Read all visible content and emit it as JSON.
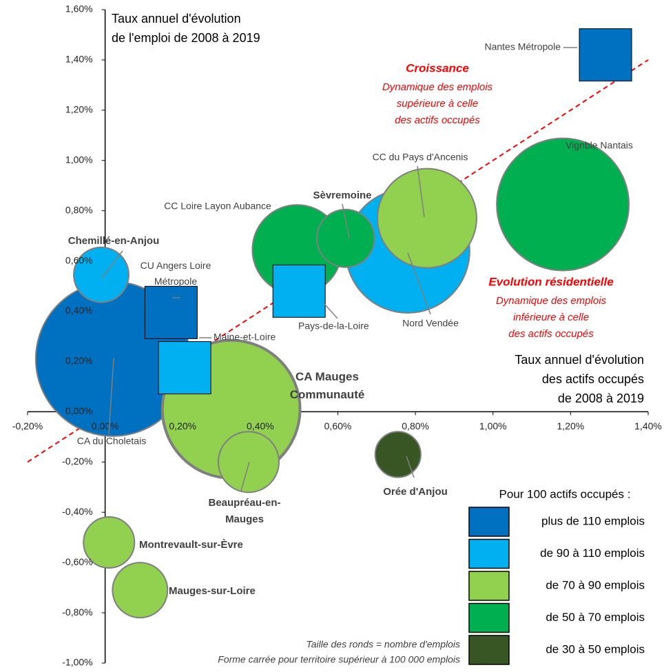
{
  "chart_data": {
    "type": "bubble",
    "title": "Taux annuel d'évolution\nde l'emploi de 2008 à 2019",
    "x_label": "Taux annuel d'évolution\ndes actifs occupés\nde 2008 à 2019",
    "legend_title": "Pour 100 actifs occupés :",
    "xlim": [
      -0.2,
      1.4
    ],
    "ylim": [
      -1.0,
      1.6
    ],
    "xticks": [
      {
        "value": -0.2,
        "label": "-0,20%"
      },
      {
        "value": 0,
        "label": "0,00%"
      },
      {
        "value": 0.2,
        "label": "0,20%"
      },
      {
        "value": 0.4,
        "label": "0,40%"
      },
      {
        "value": 0.6,
        "label": "0,60%"
      },
      {
        "value": 0.8,
        "label": "0,80%"
      },
      {
        "value": 1.0,
        "label": "1,00%"
      },
      {
        "value": 1.2,
        "label": "1,20%"
      },
      {
        "value": 1.4,
        "label": "1,40%"
      }
    ],
    "yticks": [
      {
        "value": -1.0,
        "label": "-1,00%"
      },
      {
        "value": -0.8,
        "label": "-0,80%"
      },
      {
        "value": -0.6,
        "label": "-0,60%"
      },
      {
        "value": -0.4,
        "label": "-0,40%"
      },
      {
        "value": -0.2,
        "label": "-0,20%"
      },
      {
        "value": 0,
        "label": "0,00%"
      },
      {
        "value": 0.2,
        "label": "0,20%"
      },
      {
        "value": 0.4,
        "label": "0,40%"
      },
      {
        "value": 0.6,
        "label": "0,60%"
      },
      {
        "value": 0.8,
        "label": "0,80%"
      },
      {
        "value": 1.0,
        "label": "1,00%"
      },
      {
        "value": 1.2,
        "label": "1,20%"
      },
      {
        "value": 1.4,
        "label": "1,40%"
      },
      {
        "value": 1.6,
        "label": "1,60%"
      }
    ],
    "reference_line": {
      "x": [
        -0.2,
        1.4
      ],
      "y": [
        -0.2,
        1.4
      ],
      "color": "#ff0000"
    },
    "annotations": [
      {
        "title": "Croissance",
        "text": "Dynamique des emplois\nsupérieure à celle\ndes actifs occupés",
        "color": "#ff0000"
      },
      {
        "title": "Evolution résidentielle",
        "text": "Dynamique des emplois\ninférieure à celle\ndes actifs occupés",
        "color": "#ff0000"
      }
    ],
    "notes": [
      "Taille des ronds = nombre d'emplois",
      "Forme carrée pour territoire supérieur à 100 000 emplois"
    ],
    "series": [
      {
        "name": "plus de 110 emplois",
        "color": "#0070c0",
        "labels": [
          "Nantes Métropole",
          "CU Angers Loire\nMétropole",
          "CA du Choletais"
        ],
        "x": [
          1.29,
          0.17,
          0.02
        ],
        "values": [
          1.42,
          0.395,
          0.21
        ],
        "sizes": [
          null,
          null,
          55000
        ],
        "shapes": [
          "square",
          "square",
          "circle"
        ]
      },
      {
        "name": "de 90 à 110 emplois",
        "color": "#00b0f0",
        "labels": [
          "Pays-de-la-Loire",
          "Maine-et-Loire",
          "Chemillé-en-Anjou",
          "Nord Vendée"
        ],
        "x": [
          0.5,
          0.205,
          -0.01,
          0.78
        ],
        "values": [
          0.48,
          0.175,
          0.545,
          0.64
        ],
        "sizes": [
          null,
          null,
          7000,
          35500
        ],
        "shapes": [
          "square",
          "square",
          "circle",
          "circle"
        ]
      },
      {
        "name": "de 70 à 90 emplois",
        "color": "#92d050",
        "labels": [
          "CC du Pays d'Ancenis",
          "CA Mauges\nCommunauté",
          "Beaupréau-en-\nMauges",
          "Montrevault-sur-Èvre",
          "Mauges-sur-Loire"
        ],
        "x": [
          0.83,
          0.325,
          0.37,
          0.01,
          0.09
        ],
        "values": [
          0.77,
          0.01,
          -0.2,
          -0.52,
          -0.71
        ],
        "sizes": [
          22700,
          43800,
          8500,
          6000,
          7000
        ],
        "shapes": [
          "circle",
          "circle",
          "circle",
          "circle",
          "circle"
        ]
      },
      {
        "name": "de 50 à 70 emplois",
        "color": "#00b050",
        "labels": [
          "Vignble Nantais",
          "Sèvremoine",
          "CC Loire Layon Aubance"
        ],
        "x": [
          1.18,
          0.62,
          0.495
        ],
        "values": [
          0.825,
          0.69,
          0.645
        ],
        "sizes": [
          40400,
          7700,
          18500
        ],
        "shapes": [
          "circle",
          "circle",
          "circle"
        ]
      },
      {
        "name": "de 30 à 50 emplois",
        "color": "#375623",
        "labels": [
          "Orée d'Anjou"
        ],
        "x": [
          0.755
        ],
        "values": [
          -0.17
        ],
        "sizes": [
          4800
        ],
        "shapes": [
          "circle"
        ]
      }
    ]
  }
}
